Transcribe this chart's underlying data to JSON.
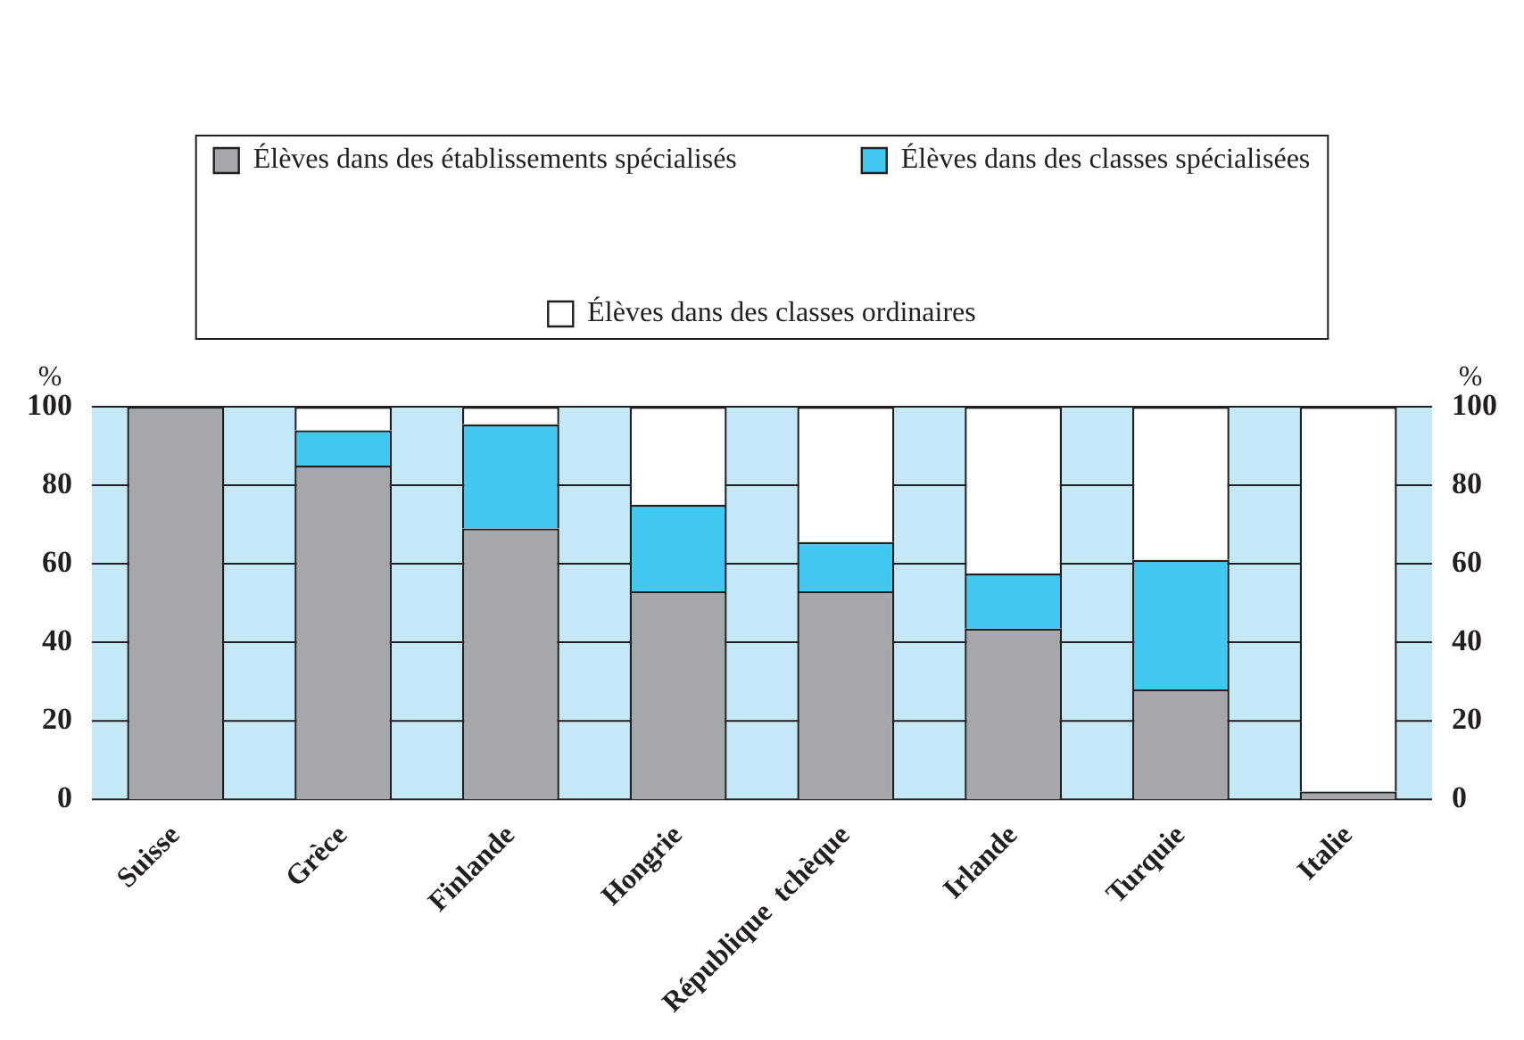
{
  "chart_data": {
    "type": "bar",
    "stacked": true,
    "categories": [
      "Suisse",
      "Grèce",
      "Finlande",
      "Hongrie",
      "République  tchèque",
      "Irlande",
      "Turquie",
      "Italie"
    ],
    "series": [
      {
        "name": "Élèves dans des établissements spécialisés",
        "color": "#a6a7ab",
        "values": [
          100,
          85,
          69,
          53,
          53,
          43.5,
          28,
          2
        ]
      },
      {
        "name": "Élèves dans des classes spécialisées",
        "color": "#40c8f0",
        "values": [
          0,
          9,
          26.5,
          22,
          12.5,
          14,
          33,
          0
        ]
      },
      {
        "name": "Élèves dans des classes ordinaires",
        "color": "#ffffff",
        "values": [
          0,
          6,
          4.5,
          25,
          34.5,
          42.5,
          39,
          98
        ]
      }
    ],
    "ylabel": "%",
    "y2label": "%",
    "ylim": [
      0,
      100
    ],
    "yticks": [
      0,
      20,
      40,
      60,
      80,
      100
    ],
    "y2lim": [
      0,
      100
    ],
    "y2ticks": [
      0,
      20,
      40,
      60,
      80,
      100
    ],
    "grid": "y",
    "legend": "top"
  }
}
